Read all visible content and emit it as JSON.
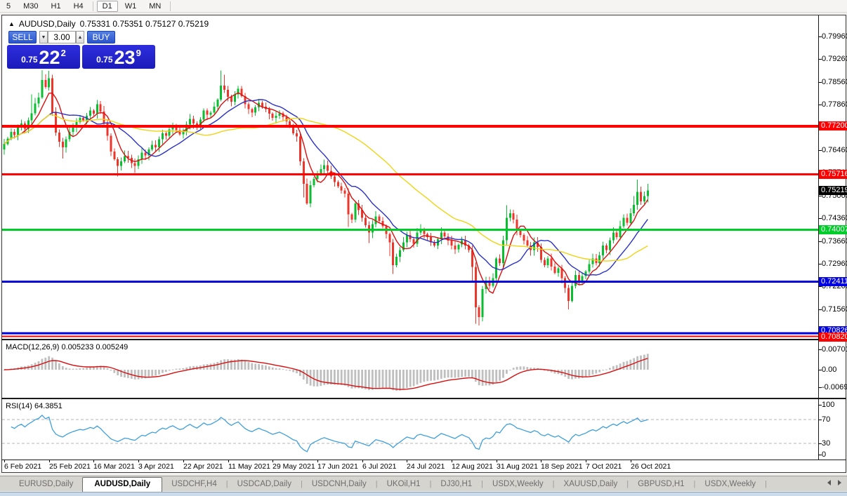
{
  "toolbar": {
    "timeframes": [
      "5",
      "M30",
      "H1",
      "H4",
      "D1",
      "W1",
      "MN"
    ],
    "active": "D1"
  },
  "chart": {
    "collapse_icon": "▲",
    "title": "AUDUSD,Daily",
    "ohlc_text": "0.75331 0.75351 0.75127 0.75219",
    "trade_panel": {
      "sell_label": "SELL",
      "buy_label": "BUY",
      "volume": "3.00",
      "sell_small": "0.75",
      "sell_big": "22",
      "sell_sup": "2",
      "buy_small": "0.75",
      "buy_big": "23",
      "buy_sup": "9"
    }
  },
  "price_axis": {
    "ticks": [
      "0.79960",
      "0.79260",
      "0.78560",
      "0.77860",
      "0.77160",
      "0.76460",
      "0.75760",
      "0.75060",
      "0.74360",
      "0.73660",
      "0.72960",
      "0.72260",
      "0.71560",
      "0.70860"
    ],
    "badges": [
      {
        "text": "0.77200",
        "bg": "#ff0000"
      },
      {
        "text": "0.75716",
        "bg": "#ff0000"
      },
      {
        "text": "0.75219",
        "bg": "#000000"
      },
      {
        "text": "0.74007",
        "bg": "#00cc2a"
      },
      {
        "text": "0.72411",
        "bg": "#0000e0"
      },
      {
        "text": "0.70826",
        "bg": "#0000e0"
      },
      {
        "text": "0.70820",
        "bg": "#ff0000"
      }
    ]
  },
  "macd_panel": {
    "label": "MACD(12,26,9)",
    "values": "0.005233 0.005249",
    "axis": [
      "0.007015",
      "0.00",
      "-0.00692"
    ]
  },
  "rsi_panel": {
    "label": "RSI(14)",
    "value": "64.3851",
    "axis": [
      "100",
      "70",
      "30",
      "0"
    ]
  },
  "date_axis": [
    "6 Feb 2021",
    "25 Feb 2021",
    "16 Mar 2021",
    "3 Apr 2021",
    "22 Apr 2021",
    "11 May 2021",
    "29 May 2021",
    "17 Jun 2021",
    "6 Jul 2021",
    "24 Jul 2021",
    "12 Aug 2021",
    "31 Aug 2021",
    "18 Sep 2021",
    "7 Oct 2021",
    "26 Oct 2021"
  ],
  "tabs": [
    "EURUSD,Daily",
    "AUDUSD,Daily",
    "USDCHF,H4",
    "USDCAD,Daily",
    "USDCNH,Daily",
    "UKOil,H1",
    "DJ30,H1",
    "USDX,Weekly",
    "XAUUSD,Daily",
    "GBPUSD,H1",
    "USDX,Weekly"
  ],
  "active_tab_index": 1,
  "chart_data": {
    "type": "candlestick",
    "symbol": "AUDUSD",
    "timeframe": "Daily",
    "header_ohlc": {
      "open": 0.75331,
      "high": 0.75351,
      "low": 0.75127,
      "close": 0.75219
    },
    "price_axis_top": 0.7996,
    "price_axis_bottom": 0.706,
    "closes": [
      0.7665,
      0.7682,
      0.7702,
      0.7692,
      0.7715,
      0.7728,
      0.7712,
      0.7738,
      0.776,
      0.779,
      0.7808,
      0.7862,
      0.784,
      0.7868,
      0.7762,
      0.77,
      0.7672,
      0.7655,
      0.768,
      0.7702,
      0.7718,
      0.7732,
      0.7745,
      0.7738,
      0.7752,
      0.7768,
      0.7759,
      0.7788,
      0.7765,
      0.7728,
      0.769,
      0.7642,
      0.7618,
      0.7598,
      0.7612,
      0.7628,
      0.7622,
      0.7606,
      0.7598,
      0.7618,
      0.7638,
      0.763,
      0.7648,
      0.7662,
      0.7655,
      0.768,
      0.7698,
      0.769,
      0.771,
      0.7722,
      0.7708,
      0.7695,
      0.7702,
      0.7725,
      0.7742,
      0.7728,
      0.7718,
      0.774,
      0.7768,
      0.7755,
      0.7762,
      0.778,
      0.7802,
      0.7845,
      0.7832,
      0.781,
      0.7795,
      0.7818,
      0.7835,
      0.7812,
      0.7788,
      0.7772,
      0.7762,
      0.7778,
      0.7792,
      0.778,
      0.7772,
      0.7758,
      0.7745,
      0.7752,
      0.776,
      0.7748,
      0.7735,
      0.7718,
      0.7698,
      0.7688,
      0.7612,
      0.7542,
      0.7482,
      0.7538,
      0.7558,
      0.7572,
      0.7588,
      0.76,
      0.7582,
      0.7565,
      0.7548,
      0.7535,
      0.7522,
      0.7512,
      0.7448,
      0.7432,
      0.7482,
      0.7462,
      0.7438,
      0.7415,
      0.7392,
      0.7418,
      0.7442,
      0.7428,
      0.7412,
      0.7388,
      0.7362,
      0.7292,
      0.7318,
      0.7338,
      0.7362,
      0.7385,
      0.7372,
      0.7358,
      0.7392,
      0.7402,
      0.7388,
      0.7378,
      0.7362,
      0.7352,
      0.7372,
      0.7392,
      0.738,
      0.7368,
      0.7352,
      0.734,
      0.7355,
      0.7368,
      0.7352,
      0.7338,
      0.7286,
      0.7162,
      0.7132,
      0.7218,
      0.7242,
      0.7228,
      0.7252,
      0.7312,
      0.7298,
      0.7368,
      0.7438,
      0.7452,
      0.7432,
      0.7398,
      0.7385,
      0.7368,
      0.7352,
      0.7338,
      0.7362,
      0.7348,
      0.7308,
      0.7292,
      0.7312,
      0.7288,
      0.7268,
      0.7282,
      0.7252,
      0.7222,
      0.7182,
      0.7228,
      0.7262,
      0.7242,
      0.7258,
      0.7272,
      0.7295,
      0.7312,
      0.7298,
      0.7322,
      0.7352,
      0.7338,
      0.7368,
      0.7392,
      0.7378,
      0.7412,
      0.7438,
      0.7422,
      0.7452,
      0.7478,
      0.7518,
      0.7488,
      0.7505,
      0.75219
    ],
    "wick_overrides": {
      "8": {
        "h": 0.7818
      },
      "11": {
        "h": 0.7892
      },
      "13": {
        "h": 0.789
      },
      "17": {
        "l": 0.762
      },
      "27": {
        "h": 0.78
      },
      "33": {
        "l": 0.7565
      },
      "38": {
        "l": 0.7576
      },
      "63": {
        "h": 0.7891
      },
      "64": {
        "h": 0.7878
      },
      "87": {
        "l": 0.75
      },
      "88": {
        "l": 0.7478
      },
      "93": {
        "h": 0.7617
      },
      "100": {
        "l": 0.741
      },
      "106": {
        "l": 0.736
      },
      "112": {
        "l": 0.732
      },
      "113": {
        "l": 0.7265
      },
      "136": {
        "l": 0.724
      },
      "137": {
        "l": 0.7112
      },
      "138": {
        "l": 0.7106
      },
      "146": {
        "h": 0.7477
      },
      "164": {
        "l": 0.7156
      },
      "183": {
        "h": 0.7505
      },
      "184": {
        "h": 0.7555
      },
      "187": {
        "h": 0.7542,
        "l": 0.7485
      }
    },
    "levels": [
      {
        "price": 0.772,
        "color": "#ff0000",
        "w": 4
      },
      {
        "price": 0.75716,
        "color": "#ff0000",
        "w": 3
      },
      {
        "price": 0.74007,
        "color": "#00cc2a",
        "w": 3
      },
      {
        "price": 0.72411,
        "color": "#0000e0",
        "w": 3
      },
      {
        "price": 0.70826,
        "color": "#0000e0",
        "w": 3
      },
      {
        "price": 0.7082,
        "color": "#ff0000",
        "w": 2
      }
    ],
    "moving_averages": [
      {
        "period": 6,
        "color": "#d90f0f"
      },
      {
        "period": 14,
        "color": "#2a31c4"
      },
      {
        "period": 45,
        "color": "#efd417"
      }
    ],
    "candle_up_color": "#0bbd31",
    "candle_down_color": "#ec352b",
    "macd": {
      "fast": 12,
      "slow": 26,
      "signal": 9,
      "main_value": 0.005233,
      "signal_value": 0.005249,
      "hist_color": "#bfbfbf",
      "line_color": "#d90f0f"
    },
    "rsi": {
      "period": 14,
      "last_value": 64.3851,
      "color": "#3f9fdc",
      "levels": [
        70,
        30
      ]
    }
  }
}
